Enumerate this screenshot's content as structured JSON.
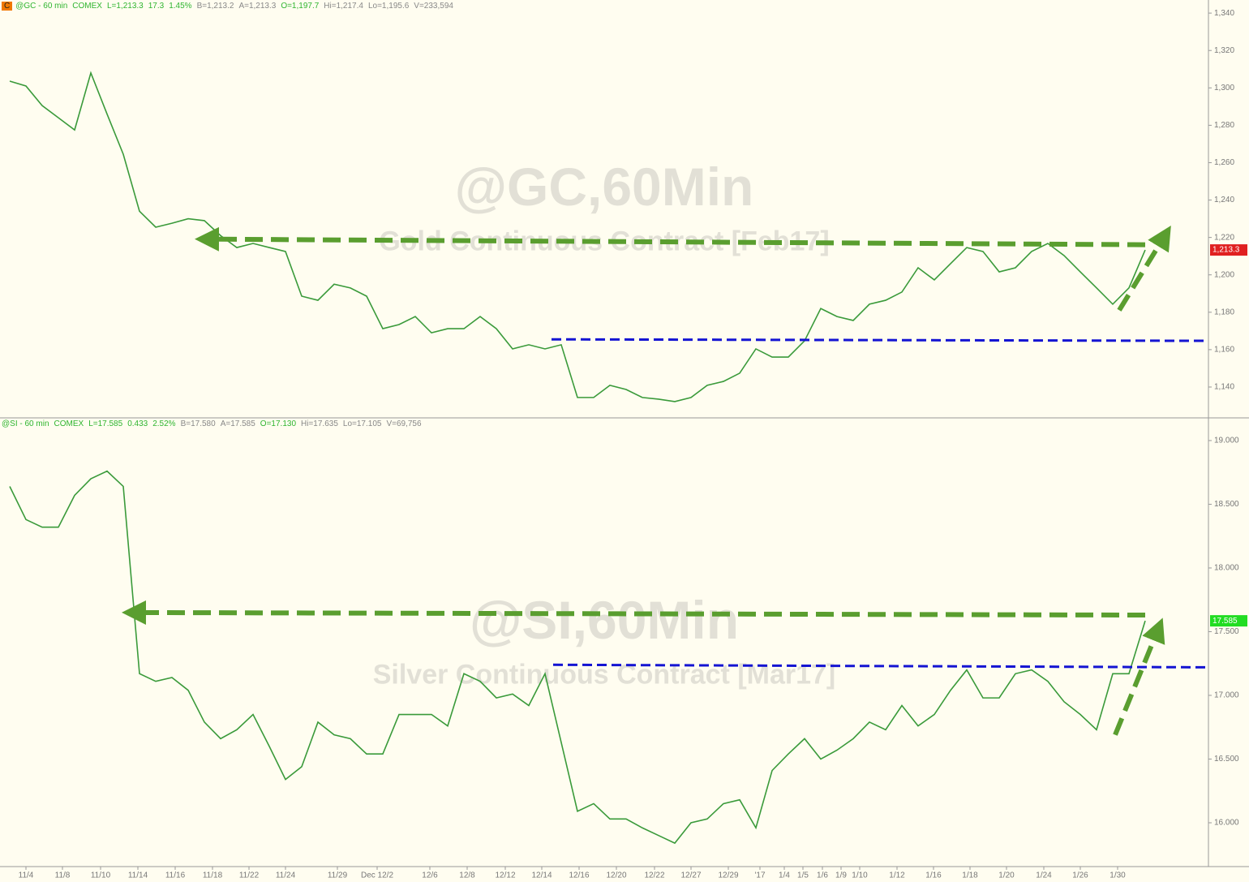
{
  "chart_data": [
    {
      "type": "line",
      "badge": "C",
      "header": [
        "@GC - 60 min",
        "COMEX",
        "L=1,213.3",
        "17.3",
        "1.45%",
        "B=1,213.2",
        "A=1,213.3",
        "O=1,197.7",
        "Hi=1,217.4",
        "Lo=1,195.6",
        "V=233,594"
      ],
      "title": "@GC,60Min",
      "subtitle": "Gold Continuous Contract [Feb17]",
      "x": [
        0,
        1,
        2,
        3,
        4,
        5,
        6,
        7,
        8,
        9,
        10,
        11,
        12,
        13,
        14,
        15,
        16,
        17,
        18,
        19,
        20,
        21,
        22,
        23,
        24,
        25,
        26,
        27,
        28,
        29,
        30,
        31,
        32,
        33,
        34,
        35,
        36,
        37,
        38,
        39,
        40,
        41,
        42,
        43,
        44,
        45,
        46,
        47,
        48,
        49,
        50,
        51,
        52,
        53,
        54,
        55,
        56,
        57,
        58,
        59,
        60,
        61,
        62,
        63,
        64,
        65,
        66,
        67,
        68,
        69,
        70
      ],
      "series": [
        {
          "color": "#3a9a3a",
          "values": [
            1303.6,
            1301,
            1290.5,
            1284,
            1277.5,
            1308,
            1286,
            1264.5,
            1234,
            1225.5,
            1227.6,
            1230,
            1229,
            1221,
            1214.6,
            1216.8,
            1214.6,
            1212.5,
            1188.6,
            1186.4,
            1195,
            1193,
            1188.6,
            1171.2,
            1173.4,
            1177.7,
            1169,
            1171.2,
            1171.2,
            1177.7,
            1171.2,
            1160.4,
            1162.6,
            1160.4,
            1162.6,
            1134.4,
            1134.4,
            1140.9,
            1138.7,
            1134.4,
            1133.5,
            1132.2,
            1134.4,
            1140.9,
            1143,
            1147.4,
            1160.4,
            1156,
            1156,
            1164.7,
            1182,
            1177.7,
            1175.6,
            1184.3,
            1186.4,
            1190.8,
            1203.8,
            1197.3,
            1206,
            1214.6,
            1212.5,
            1201.6,
            1203.8,
            1212.5,
            1216.8,
            1210.3,
            1201.6,
            1193,
            1184.3,
            1193,
            1213.3
          ]
        }
      ],
      "last_tag": {
        "value": 1213.3,
        "label": "1,213.3",
        "color": "#e02020"
      },
      "xlim": [
        -0.6,
        73.9
      ],
      "ylim": [
        1123.5,
        1347
      ],
      "yticks": [
        {
          "value": 1140,
          "label": "1,140"
        },
        {
          "value": 1160,
          "label": "1,160"
        },
        {
          "value": 1180,
          "label": "1,180"
        },
        {
          "value": 1200,
          "label": "1,200"
        },
        {
          "value": 1220,
          "label": "1,220"
        },
        {
          "value": 1240,
          "label": "1,240"
        },
        {
          "value": 1260,
          "label": "1,260"
        },
        {
          "value": 1280,
          "label": "1,280"
        },
        {
          "value": 1300,
          "label": "1,300"
        },
        {
          "value": 1320,
          "label": "1,320"
        },
        {
          "value": 1340,
          "label": "1,340"
        }
      ],
      "arrows": [
        {
          "x": [
            70,
            12.15
          ],
          "y": [
            1216.1,
            1219.1
          ],
          "color": "#5a9e2f"
        },
        {
          "x": [
            68.4,
            71.2
          ],
          "y": [
            1181.1,
            1220.8
          ],
          "color": "#5a9e2f"
        }
      ],
      "lines": [
        {
          "x": [
            33.4,
            73.8
          ],
          "y": [
            1165.5,
            1164.7
          ],
          "color": "#1414d2"
        }
      ]
    },
    {
      "type": "line",
      "header": [
        "@SI - 60 min",
        "COMEX",
        "L=17.585",
        "0.433",
        "2.52%",
        "B=17.580",
        "A=17.585",
        "O=17.130",
        "Hi=17.635",
        "Lo=17.105",
        "V=69,756"
      ],
      "title": "@SI,60Min",
      "subtitle": "Silver Continuous Contract [Mar17]",
      "x": [
        0,
        1,
        2,
        3,
        4,
        5,
        6,
        7,
        8,
        9,
        10,
        11,
        12,
        13,
        14,
        15,
        16,
        17,
        18,
        19,
        20,
        21,
        22,
        23,
        24,
        25,
        26,
        27,
        28,
        29,
        30,
        31,
        32,
        33,
        34,
        35,
        36,
        37,
        38,
        39,
        40,
        41,
        42,
        43,
        44,
        45,
        46,
        47,
        48,
        49,
        50,
        51,
        52,
        53,
        54,
        55,
        56,
        57,
        58,
        59,
        60,
        61,
        62,
        63,
        64,
        65,
        66,
        67,
        68,
        69,
        70
      ],
      "series": [
        {
          "color": "#3a9a3a",
          "values": [
            18.64,
            18.38,
            18.32,
            18.32,
            18.57,
            18.7,
            18.76,
            18.64,
            17.17,
            17.11,
            17.14,
            17.04,
            16.79,
            16.66,
            16.73,
            16.85,
            16.6,
            16.34,
            16.44,
            16.79,
            16.69,
            16.66,
            16.54,
            16.54,
            16.85,
            16.85,
            16.85,
            16.76,
            17.17,
            17.11,
            16.98,
            17.01,
            16.92,
            17.17,
            16.63,
            16.09,
            16.15,
            16.03,
            16.03,
            15.96,
            15.9,
            15.84,
            16,
            16.03,
            16.15,
            16.18,
            15.96,
            16.41,
            16.54,
            16.66,
            16.5,
            16.57,
            16.66,
            16.79,
            16.73,
            16.92,
            16.76,
            16.85,
            17.04,
            17.2,
            16.98,
            16.98,
            17.17,
            17.2,
            17.11,
            16.95,
            16.85,
            16.73,
            17.17,
            17.17,
            17.585
          ]
        }
      ],
      "last_tag": {
        "value": 17.585,
        "label": "17.585",
        "color": "#22dd22"
      },
      "xlim": [
        -0.6,
        73.9
      ],
      "ylim": [
        15.656,
        19.178
      ],
      "yticks": [
        {
          "value": 16,
          "label": "16.000"
        },
        {
          "value": 16.5,
          "label": "16.500"
        },
        {
          "value": 17,
          "label": "17.000"
        },
        {
          "value": 17.5,
          "label": "17.500"
        },
        {
          "value": 18,
          "label": "18.000"
        },
        {
          "value": 18.5,
          "label": "18.500"
        },
        {
          "value": 19,
          "label": "19.000"
        }
      ],
      "xticks": [
        {
          "value": 1,
          "label": "11/4"
        },
        {
          "value": 3.25,
          "label": "11/8"
        },
        {
          "value": 5.6,
          "label": "11/10"
        },
        {
          "value": 7.9,
          "label": "11/14"
        },
        {
          "value": 10.2,
          "label": "11/16"
        },
        {
          "value": 12.5,
          "label": "11/18"
        },
        {
          "value": 14.75,
          "label": "11/22"
        },
        {
          "value": 17,
          "label": "11/24"
        },
        {
          "value": 20.2,
          "label": "11/29"
        },
        {
          "value": 22.65,
          "label": "Dec 12/2"
        },
        {
          "value": 25.9,
          "label": "12/6"
        },
        {
          "value": 28.2,
          "label": "12/8"
        },
        {
          "value": 30.55,
          "label": "12/12"
        },
        {
          "value": 32.8,
          "label": "12/14"
        },
        {
          "value": 35.1,
          "label": "12/16"
        },
        {
          "value": 37.4,
          "label": "12/20"
        },
        {
          "value": 39.75,
          "label": "12/22"
        },
        {
          "value": 42,
          "label": "12/27"
        },
        {
          "value": 44.3,
          "label": "12/29"
        },
        {
          "value": 46.25,
          "label": "'17"
        },
        {
          "value": 47.75,
          "label": "1/4"
        },
        {
          "value": 48.9,
          "label": "1/5"
        },
        {
          "value": 50.1,
          "label": "1/6"
        },
        {
          "value": 51.25,
          "label": "1/9"
        },
        {
          "value": 52.4,
          "label": "1/10"
        },
        {
          "value": 54.7,
          "label": "1/12"
        },
        {
          "value": 56.95,
          "label": "1/16"
        },
        {
          "value": 59.2,
          "label": "1/18"
        },
        {
          "value": 61.45,
          "label": "1/20"
        },
        {
          "value": 63.75,
          "label": "1/24"
        },
        {
          "value": 66,
          "label": "1/26"
        },
        {
          "value": 68.3,
          "label": "1/30"
        }
      ],
      "arrows": [
        {
          "x": [
            70,
            7.65
          ],
          "y": [
            17.63,
            17.65
          ],
          "color": "#5a9e2f"
        },
        {
          "x": [
            68.15,
            70.8
          ],
          "y": [
            16.69,
            17.52
          ],
          "color": "#5a9e2f"
        }
      ],
      "lines": [
        {
          "x": [
            33.5,
            73.9
          ],
          "y": [
            17.24,
            17.22
          ],
          "color": "#1414d2"
        }
      ]
    }
  ]
}
